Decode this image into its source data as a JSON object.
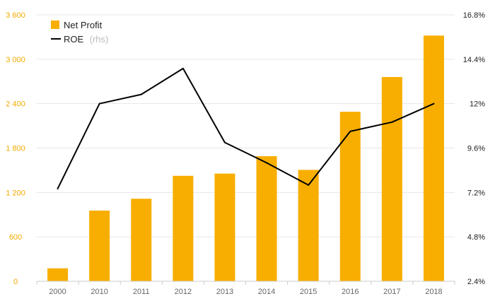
{
  "chart_data": {
    "type": "bar",
    "categories": [
      "2000",
      "2010",
      "2011",
      "2012",
      "2013",
      "2014",
      "2015",
      "2016",
      "2017",
      "2018"
    ],
    "series": [
      {
        "name": "Net Profit",
        "chart": "bar",
        "axis": "left",
        "color": "#f8ae00",
        "values": [
          175,
          955,
          1115,
          1425,
          1455,
          1690,
          1505,
          2290,
          2760,
          3320
        ]
      },
      {
        "name": "ROE",
        "name_suffix": "(rhs)",
        "chart": "line",
        "axis": "right",
        "color": "#000000",
        "values": [
          7.4,
          12.0,
          12.5,
          13.9,
          9.9,
          8.8,
          7.6,
          10.5,
          11.0,
          12.0
        ]
      }
    ],
    "y_left": {
      "ylim": [
        0,
        3600
      ],
      "ticks": [
        0,
        600,
        1200,
        1800,
        2400,
        3000,
        3600
      ],
      "tick_labels": [
        "0",
        "600",
        "1 200",
        "1 800",
        "2 400",
        "3 000",
        "3 600"
      ],
      "color": "#f2ab00"
    },
    "y_right": {
      "ylim": [
        2.4,
        16.8
      ],
      "ticks": [
        2.4,
        4.8,
        7.2,
        9.6,
        12,
        14.4,
        16.8
      ],
      "tick_labels": [
        "2.4%",
        "4.8%",
        "7.2%",
        "9.6%",
        "12%",
        "14.4%",
        "16.8%"
      ]
    },
    "grid": true,
    "legend": "top-left",
    "title": "",
    "xlabel": "",
    "ylabel": ""
  }
}
